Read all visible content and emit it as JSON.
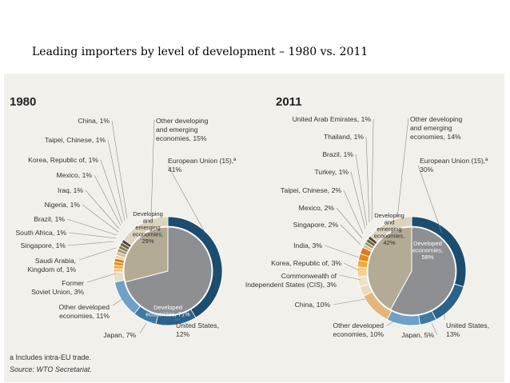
{
  "slide_title": "Leading importers by level of development – 1980 vs. 2011",
  "footnote": "a Includes intra-EU trade.",
  "source": "Source: WTO Secretariat.",
  "chart_data": [
    {
      "type": "pie",
      "title": "1980",
      "inner_ring": [
        {
          "label": [
            "Developed",
            "economies, 71%"
          ],
          "value": 71
        },
        {
          "label": [
            "Developing",
            "and",
            "emerging",
            "economies,",
            "29%"
          ],
          "value": 29
        }
      ],
      "outer_ring": [
        {
          "label": [
            "European Union (15),ª",
            "41%"
          ],
          "value": 41,
          "color": "#1d4d6e"
        },
        {
          "label": [
            "United States,",
            "12%"
          ],
          "value": 12,
          "color": "#2b6289"
        },
        {
          "label": [
            "Japan, 7%"
          ],
          "value": 7,
          "color": "#3f7aa3"
        },
        {
          "label": [
            "Other developed",
            "economies, 11%"
          ],
          "value": 11,
          "color": "#6fa0c6"
        },
        {
          "label": [
            "Former",
            "Soviet Union, 3%"
          ],
          "value": 3,
          "color": "#e8dfc9"
        },
        {
          "label": [
            "Saudi Arabia,",
            "Kingdom of, 1%"
          ],
          "value": 1,
          "color": "#f3c178"
        },
        {
          "label": [
            "Singapore, 1%"
          ],
          "value": 1,
          "color": "#f2a93a"
        },
        {
          "label": [
            "South Africa, 1%"
          ],
          "value": 1,
          "color": "#e68a1f"
        },
        {
          "label": [
            "Brazil, 1%"
          ],
          "value": 1,
          "color": "#d87820"
        },
        {
          "label": [
            "Nigeria, 1%"
          ],
          "value": 1,
          "color": "#f6d18e"
        },
        {
          "label": [
            "Iraq, 1%"
          ],
          "value": 1,
          "color": "#cfbf9c"
        },
        {
          "label": [
            "Mexico, 1%"
          ],
          "value": 1,
          "color": "#a8946a"
        },
        {
          "label": [
            "Korea, Republic of, 1%"
          ],
          "value": 1,
          "color": "#8a7a55"
        },
        {
          "label": [
            "Taipei, Chinese, 1%"
          ],
          "value": 1,
          "color": "#6b5d3e"
        },
        {
          "label": [
            "China, 1%"
          ],
          "value": 1,
          "color": "#4e4530"
        },
        {
          "label": [
            "Other developing",
            "and emerging",
            "economies, 15%"
          ],
          "value": 15,
          "color": "#dcd3bd"
        }
      ]
    },
    {
      "type": "pie",
      "title": "2011",
      "inner_ring": [
        {
          "label": [
            "Developed",
            "economies,",
            "58%"
          ],
          "value": 58
        },
        {
          "label": [
            "Developing",
            "and",
            "emerging",
            "economies,",
            "42%"
          ],
          "value": 42
        }
      ],
      "outer_ring": [
        {
          "label": [
            "European Union (15),ª",
            "30%"
          ],
          "value": 30,
          "color": "#1d4d6e"
        },
        {
          "label": [
            "United States,",
            "13%"
          ],
          "value": 13,
          "color": "#2b6289"
        },
        {
          "label": [
            "Japan, 5%"
          ],
          "value": 5,
          "color": "#3f7aa3"
        },
        {
          "label": [
            "Other developed",
            "economies, 10%"
          ],
          "value": 10,
          "color": "#6fa0c6"
        },
        {
          "label": [
            "China, 10%"
          ],
          "value": 10,
          "color": "#e3b77c"
        },
        {
          "label": [
            "Commonwealth of",
            "Independent States (CIS), 3%"
          ],
          "value": 3,
          "color": "#eadbc0"
        },
        {
          "label": [
            "Korea, Republic of, 3%"
          ],
          "value": 3,
          "color": "#f0e2c6"
        },
        {
          "label": [
            "India, 3%"
          ],
          "value": 3,
          "color": "#f6d18e"
        },
        {
          "label": [
            "Singapore, 2%"
          ],
          "value": 2,
          "color": "#f2a93a"
        },
        {
          "label": [
            "Mexico, 2%"
          ],
          "value": 2,
          "color": "#e68a1f"
        },
        {
          "label": [
            "Taipei, Chinese, 2%"
          ],
          "value": 2,
          "color": "#d87820"
        },
        {
          "label": [
            "Turkey, 1%"
          ],
          "value": 1,
          "color": "#cfbf9c"
        },
        {
          "label": [
            "Brazil, 1%"
          ],
          "value": 1,
          "color": "#a8946a"
        },
        {
          "label": [
            "Thailand, 1%"
          ],
          "value": 1,
          "color": "#6b5d3e"
        },
        {
          "label": [
            "United Arab Emirates, 1%"
          ],
          "value": 1,
          "color": "#4e4530"
        },
        {
          "label": [
            "Other developing",
            "and emerging",
            "economies, 14%"
          ],
          "value": 14,
          "color": "#dcd3bd"
        }
      ]
    }
  ]
}
